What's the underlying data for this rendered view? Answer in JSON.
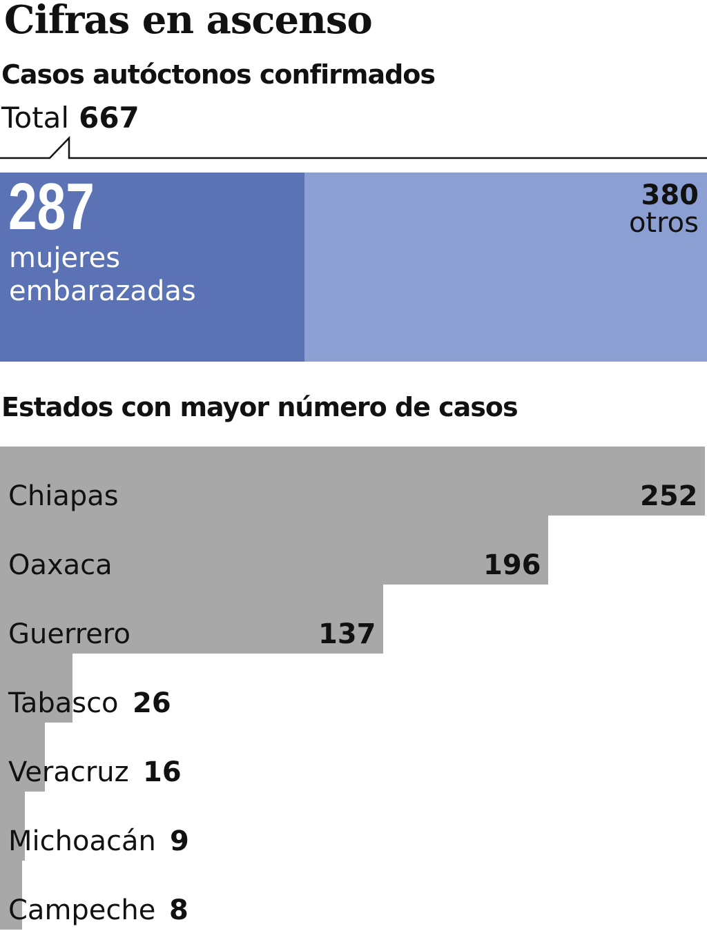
{
  "title": "Cifras en ascenso",
  "subtitle": "Casos autóctonos confirmados",
  "total": {
    "label": "Total",
    "value": "667"
  },
  "colors": {
    "embarazadas": "#5b73b5",
    "otros": "#8b9fd3",
    "state_bar": "#a8a8a8",
    "text": "#111111"
  },
  "chart_data": [
    {
      "type": "bar",
      "orientation": "stacked-horizontal",
      "total": 667,
      "series": [
        {
          "name": "mujeres embarazadas",
          "value": 287,
          "value_label": "287",
          "label": "mujeres\nembarazadas"
        },
        {
          "name": "otros",
          "value": 380,
          "value_label": "380",
          "label": "otros"
        }
      ]
    },
    {
      "type": "bar",
      "orientation": "horizontal",
      "title": "Estados con mayor número de casos",
      "categories": [
        "Chiapas",
        "Oaxaca",
        "Guerrero",
        "Tabasco",
        "Veracruz",
        "Michoacán",
        "Campeche"
      ],
      "values": [
        252,
        196,
        137,
        26,
        16,
        9,
        8
      ],
      "value_labels": [
        "252",
        "196",
        "137",
        "26",
        "16",
        "9",
        "8"
      ]
    }
  ]
}
